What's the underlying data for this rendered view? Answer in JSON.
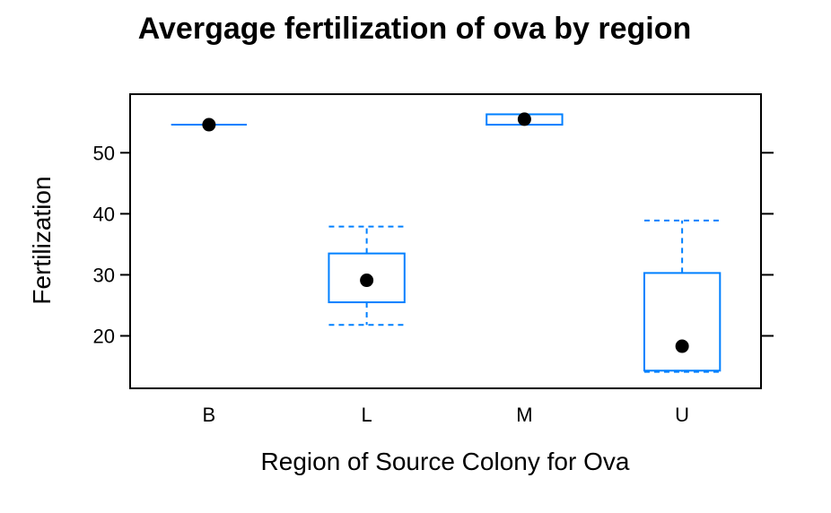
{
  "chart_data": {
    "type": "box",
    "title": "Avergage fertilization of ova by region",
    "xlabel": "Region of Source Colony for Ova",
    "ylabel": "Fertilization",
    "categories": [
      "B",
      "L",
      "M",
      "U"
    ],
    "y_ticks": [
      20,
      30,
      40,
      50
    ],
    "ylim": [
      11.4,
      59.6
    ],
    "grid": false,
    "legend": "none",
    "boxes": [
      {
        "category": "B",
        "min": 54.6,
        "q1": 54.6,
        "median": 54.6,
        "q3": 54.6,
        "max": 54.6
      },
      {
        "category": "L",
        "min": 21.8,
        "q1": 25.5,
        "median": 29.1,
        "q3": 33.5,
        "max": 37.9
      },
      {
        "category": "M",
        "min": 54.6,
        "q1": 54.6,
        "median": 55.5,
        "q3": 56.3,
        "max": 56.3
      },
      {
        "category": "U",
        "min": 14.1,
        "q1": 14.3,
        "median": 18.3,
        "q3": 30.3,
        "max": 38.9
      }
    ],
    "colors": {
      "box": "#0080ff",
      "median_dot": "#000000",
      "frame": "#000000"
    }
  }
}
